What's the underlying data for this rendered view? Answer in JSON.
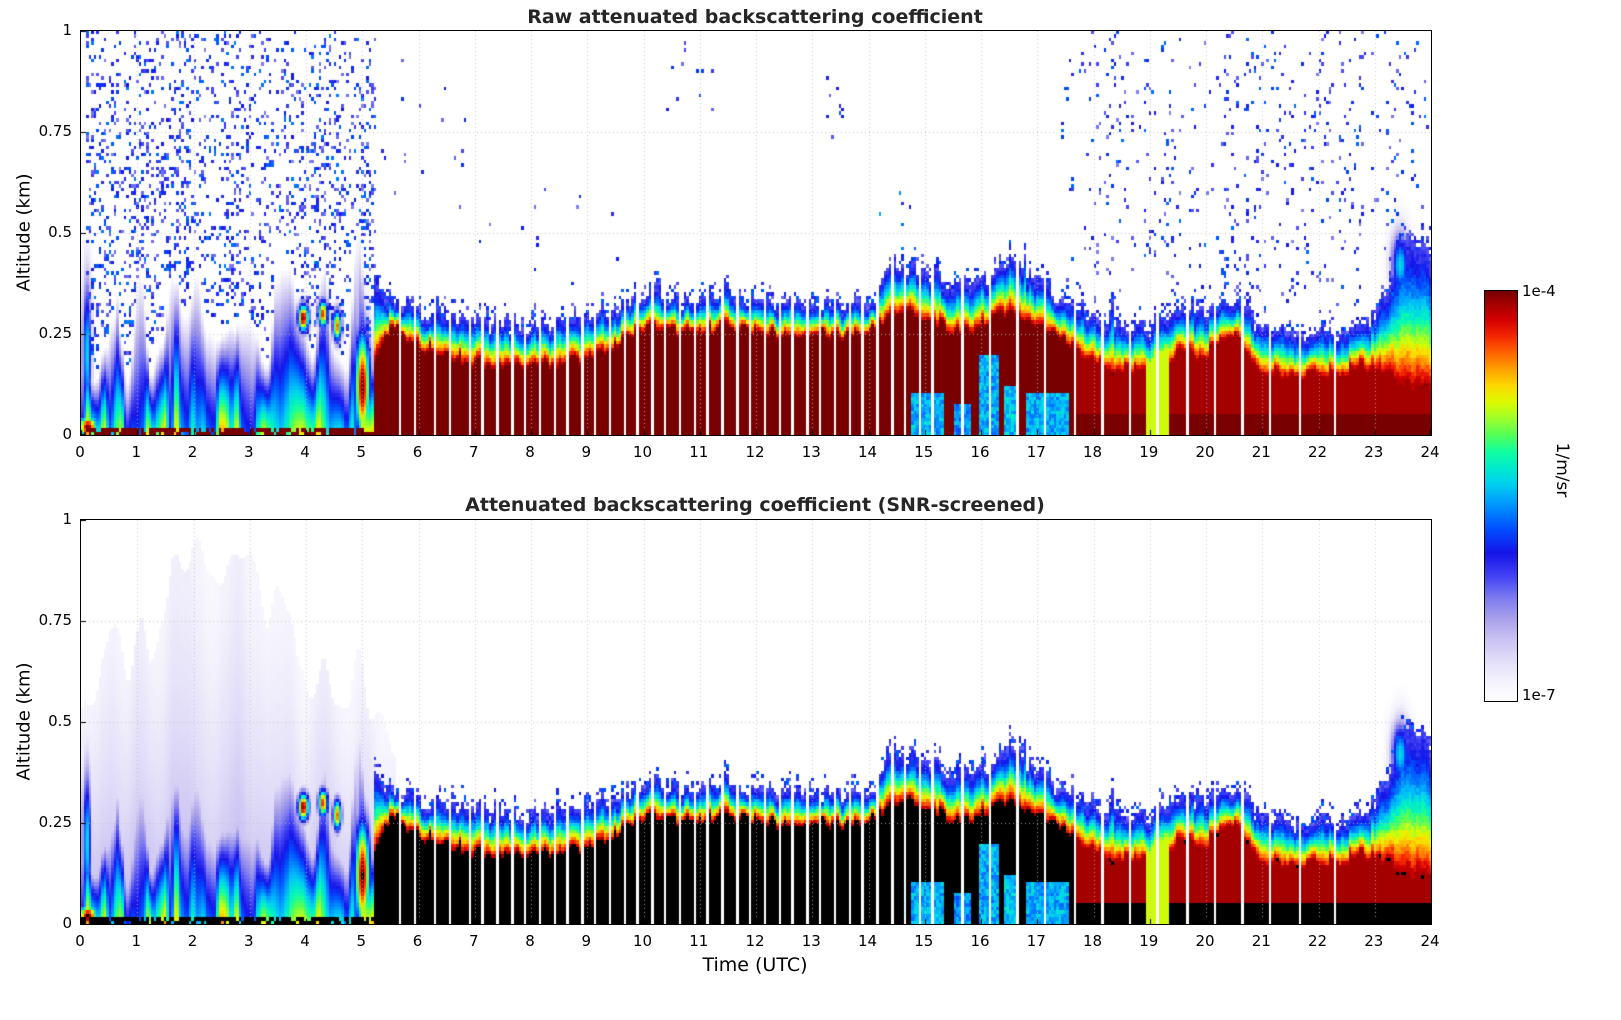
{
  "figure": {
    "plots": [
      {
        "title": "Raw attenuated backscattering coefficient"
      },
      {
        "title": "Attenuated backscattering coefficient (SNR-screened)"
      }
    ],
    "xlabel": "Time (UTC)",
    "ylabel": "Altitude (km)",
    "x_ticks": [
      "0",
      "1",
      "2",
      "3",
      "4",
      "5",
      "6",
      "7",
      "8",
      "9",
      "10",
      "11",
      "12",
      "13",
      "14",
      "15",
      "16",
      "17",
      "18",
      "19",
      "20",
      "21",
      "22",
      "23",
      "24"
    ],
    "y_ticks": [
      "0",
      "0.25",
      "0.5",
      "0.75",
      "1"
    ],
    "colorbar": {
      "max_label": "1e-4",
      "min_label": "1e-7",
      "unit": "1/m/sr"
    }
  },
  "chart_data": [
    {
      "type": "heatmap",
      "title": "Raw attenuated backscattering coefficient",
      "xlabel": "Time (UTC)",
      "ylabel": "Altitude (km)",
      "x_range_hours": [
        0,
        24
      ],
      "y_range_km": [
        0,
        1
      ],
      "value_scale": "log10",
      "value_range": [
        1e-07,
        0.0001
      ],
      "value_units": "1/m/sr",
      "colormap_hint": "jet-like, white at minimum, dark red at maximum",
      "time_grid_hours": [
        0,
        0.5,
        1,
        1.5,
        2,
        2.5,
        3,
        3.5,
        4,
        4.5,
        5,
        5.5,
        6,
        6.5,
        7,
        7.5,
        8,
        8.5,
        9,
        9.5,
        10,
        10.5,
        11,
        11.5,
        12,
        12.5,
        13,
        13.5,
        14,
        14.5,
        15,
        15.5,
        16,
        16.5,
        17,
        17.5,
        18,
        18.5,
        19,
        19.5,
        20,
        20.5,
        21,
        21.5,
        22,
        22.5,
        23,
        23.5,
        24
      ],
      "aerosol_layer_top_km": [
        0.4,
        0.31,
        0.28,
        0.3,
        0.26,
        0.22,
        0.26,
        0.3,
        0.34,
        0.34,
        0.36,
        0.34,
        0.3,
        0.29,
        0.28,
        0.27,
        0.27,
        0.28,
        0.29,
        0.31,
        0.35,
        0.34,
        0.33,
        0.36,
        0.33,
        0.32,
        0.33,
        0.32,
        0.32,
        0.43,
        0.41,
        0.37,
        0.37,
        0.44,
        0.37,
        0.32,
        0.29,
        0.27,
        0.26,
        0.31,
        0.3,
        0.34,
        0.26,
        0.25,
        0.25,
        0.26,
        0.28,
        0.48,
        0.45
      ],
      "saturated_core_top_km": [
        0.04,
        0.02,
        0.02,
        0.02,
        0.02,
        0.01,
        0.02,
        0.02,
        0.03,
        0.03,
        0.1,
        0.27,
        0.22,
        0.2,
        0.18,
        0.17,
        0.17,
        0.18,
        0.19,
        0.22,
        0.27,
        0.26,
        0.25,
        0.27,
        0.26,
        0.25,
        0.26,
        0.25,
        0.26,
        0.31,
        0.29,
        0.26,
        0.27,
        0.31,
        0.28,
        0.24,
        0.18,
        0.16,
        0.15,
        0.2,
        0.2,
        0.25,
        0.16,
        0.15,
        0.15,
        0.16,
        0.17,
        0.13,
        0.11
      ],
      "features": "Dense blue noise speckle fills 00-05 UTC up to 1 km; shallow colorful plume streaks below ~0.35 km before 05 UTC; continuous saturated (dark red) layer below ~0.3 km from ~05:15 to 24 UTC with rainbow gradient edge; spikes to ~0.45 km near 14.5, 15.1, 16.5 and 17.3 UTC; sparse blue noise dots above the layer after 17:30 UTC; thin white vertical columns are missing profiles."
    },
    {
      "type": "heatmap",
      "screened": true,
      "title": "Attenuated backscattering coefficient (SNR-screened)",
      "xlabel": "Time (UTC)",
      "ylabel": "Altitude (km)",
      "x_range_hours": [
        0,
        24
      ],
      "y_range_km": [
        0,
        1
      ],
      "value_scale": "log10",
      "value_range": [
        1e-07,
        0.0001
      ],
      "value_units": "1/m/sr",
      "colormap_hint": "jet-like, white at minimum; saturated returns rendered black",
      "time_grid_hours": [
        0,
        0.5,
        1,
        1.5,
        2,
        2.5,
        3,
        3.5,
        4,
        4.5,
        5,
        5.5,
        6,
        6.5,
        7,
        7.5,
        8,
        8.5,
        9,
        9.5,
        10,
        10.5,
        11,
        11.5,
        12,
        12.5,
        13,
        13.5,
        14,
        14.5,
        15,
        15.5,
        16,
        16.5,
        17,
        17.5,
        18,
        18.5,
        19,
        19.5,
        20,
        20.5,
        21,
        21.5,
        22,
        22.5,
        23,
        23.5,
        24
      ],
      "aerosol_layer_top_km": [
        0.4,
        0.31,
        0.28,
        0.3,
        0.26,
        0.22,
        0.26,
        0.3,
        0.34,
        0.34,
        0.36,
        0.34,
        0.3,
        0.29,
        0.28,
        0.27,
        0.27,
        0.28,
        0.29,
        0.31,
        0.35,
        0.34,
        0.33,
        0.36,
        0.33,
        0.32,
        0.33,
        0.32,
        0.32,
        0.43,
        0.41,
        0.37,
        0.37,
        0.44,
        0.37,
        0.32,
        0.29,
        0.27,
        0.26,
        0.31,
        0.3,
        0.34,
        0.26,
        0.25,
        0.25,
        0.26,
        0.28,
        0.48,
        0.45
      ],
      "saturated_core_top_km": [
        0.04,
        0.02,
        0.02,
        0.02,
        0.02,
        0.01,
        0.02,
        0.02,
        0.03,
        0.03,
        0.1,
        0.27,
        0.22,
        0.2,
        0.18,
        0.17,
        0.17,
        0.18,
        0.19,
        0.22,
        0.27,
        0.26,
        0.25,
        0.27,
        0.26,
        0.25,
        0.26,
        0.25,
        0.26,
        0.31,
        0.29,
        0.26,
        0.27,
        0.31,
        0.28,
        0.24,
        0.18,
        0.16,
        0.15,
        0.2,
        0.2,
        0.25,
        0.16,
        0.15,
        0.15,
        0.16,
        0.17,
        0.13,
        0.11
      ],
      "haze_top_km_00_06": [
        0.55,
        0.75,
        0.65,
        0.8,
        0.85,
        0.82,
        0.9,
        0.75,
        0.62,
        0.6,
        0.6,
        0.5,
        0.3
      ],
      "features": "Same layer structure after SNR screening: the 00-05 UTC noise speckle is removed leaving a pale lavender haze up to ~0.9 km; saturated returns (>= 1e-4 1/m/sr) are shown black between ~05:15 and ~17:40 UTC; cyan weak-signal patches near the surface 14:45-17:30 UTC; missing-profile white columns identical to raw plot."
    }
  ],
  "style": {
    "background": "#ffffff",
    "frame_color": "#000000",
    "grid_color": "rgba(190,190,190,0.8)",
    "saturated_black": "#000000",
    "colormap": [
      [
        0.0,
        "#ffffff"
      ],
      [
        0.05,
        "#f3f1fc"
      ],
      [
        0.1,
        "#e2ddf8"
      ],
      [
        0.15,
        "#c9c2f2"
      ],
      [
        0.2,
        "#a9a0ea"
      ],
      [
        0.25,
        "#7d7cf0"
      ],
      [
        0.3,
        "#4646f5"
      ],
      [
        0.36,
        "#1515e8"
      ],
      [
        0.42,
        "#0050ff"
      ],
      [
        0.48,
        "#0098ff"
      ],
      [
        0.53,
        "#00d0f0"
      ],
      [
        0.57,
        "#00eccc"
      ],
      [
        0.61,
        "#14ff9e"
      ],
      [
        0.65,
        "#55ff55"
      ],
      [
        0.69,
        "#9fff2a"
      ],
      [
        0.73,
        "#ddfa00"
      ],
      [
        0.77,
        "#ffd800"
      ],
      [
        0.81,
        "#ffa000"
      ],
      [
        0.85,
        "#ff6400"
      ],
      [
        0.89,
        "#f52800"
      ],
      [
        0.93,
        "#d50000"
      ],
      [
        0.97,
        "#a50000"
      ],
      [
        1.0,
        "#780000"
      ]
    ]
  },
  "render": {
    "seed": 1234,
    "cols": 540,
    "rows": 116,
    "gaps_hours": [
      5.63,
      5.92,
      6.27,
      6.53,
      6.88,
      7.13,
      7.37,
      7.63,
      7.88,
      8.12,
      8.38,
      8.63,
      8.87,
      9.12,
      9.38,
      9.63,
      9.88,
      10.12,
      10.37,
      10.63,
      10.88,
      11.12,
      11.38,
      11.63,
      11.87,
      12.12,
      12.38,
      12.63,
      12.88,
      13.12,
      13.37,
      13.63,
      13.88,
      14.12,
      14.38,
      14.63,
      14.88,
      15.12,
      15.63,
      16.12,
      16.63,
      17.12,
      17.63,
      18.12,
      18.63,
      19.12,
      19.63,
      20.12,
      20.63,
      21.12,
      21.63,
      22.27
    ],
    "speckle_regions": [
      {
        "t0": 0.1,
        "t1": 5.25,
        "z0": 0.04,
        "z1": 1.0,
        "density": 0.2,
        "vmin": 0.24,
        "vmax": 0.46,
        "falloff": true
      },
      {
        "t0": 5.25,
        "t1": 7.0,
        "z0": 0.3,
        "z1": 1.0,
        "density": 0.006,
        "vmin": 0.24,
        "vmax": 0.4
      },
      {
        "t0": 7.0,
        "t1": 10.0,
        "z0": 0.28,
        "z1": 0.7,
        "density": 0.004,
        "vmin": 0.24,
        "vmax": 0.4
      },
      {
        "t0": 10.3,
        "t1": 11.3,
        "z0": 0.8,
        "z1": 1.0,
        "density": 0.02,
        "vmin": 0.24,
        "vmax": 0.42
      },
      {
        "t0": 13.25,
        "t1": 13.6,
        "z0": 0.72,
        "z1": 0.95,
        "density": 0.06,
        "vmin": 0.26,
        "vmax": 0.44
      },
      {
        "t0": 14.15,
        "t1": 14.75,
        "z0": 0.45,
        "z1": 0.62,
        "density": 0.04,
        "vmin": 0.3,
        "vmax": 0.5
      },
      {
        "t0": 17.4,
        "t1": 24.0,
        "z0": 0.32,
        "z1": 1.0,
        "density": 0.03,
        "vmin": 0.24,
        "vmax": 0.45
      },
      {
        "t0": 18.1,
        "t1": 19.4,
        "z0": 0.45,
        "z1": 1.0,
        "density": 0.035,
        "vmin": 0.24,
        "vmax": 0.45
      },
      {
        "t0": 20.3,
        "t1": 23.7,
        "z0": 0.35,
        "z1": 0.95,
        "density": 0.035,
        "vmin": 0.24,
        "vmax": 0.45
      }
    ],
    "warm_spots": [
      {
        "t": 0.12,
        "z": 0.02,
        "rt": 0.18,
        "rz": 0.03,
        "v": 1.0
      },
      {
        "t": 0.1,
        "z": 0.2,
        "rt": 0.08,
        "rz": 0.18,
        "v": 0.55
      },
      {
        "t": 3.95,
        "z": 0.29,
        "rt": 0.1,
        "rz": 0.035,
        "v": 0.99
      },
      {
        "t": 4.3,
        "z": 0.3,
        "rt": 0.09,
        "rz": 0.035,
        "v": 0.9
      },
      {
        "t": 4.55,
        "z": 0.27,
        "rt": 0.08,
        "rz": 0.04,
        "v": 0.85
      },
      {
        "t": 5.0,
        "z": 0.12,
        "rt": 0.14,
        "rz": 0.14,
        "v": 0.99
      },
      {
        "t": 23.45,
        "z": 0.42,
        "rt": 0.16,
        "rz": 0.08,
        "v": 0.55
      }
    ],
    "ground_cyan": [
      {
        "t0": 14.75,
        "t1": 15.35,
        "z1": 0.1,
        "v": 0.5
      },
      {
        "t0": 15.5,
        "t1": 15.8,
        "z1": 0.08,
        "v": 0.47
      },
      {
        "t0": 15.95,
        "t1": 16.3,
        "z1": 0.2,
        "v": 0.5
      },
      {
        "t0": 16.4,
        "t1": 16.65,
        "z1": 0.12,
        "v": 0.52
      },
      {
        "t0": 16.8,
        "t1": 17.55,
        "z1": 0.1,
        "v": 0.5
      }
    ],
    "cool_columns": [
      {
        "t0": 18.95,
        "t1": 19.35,
        "vmax": 0.72
      }
    ]
  }
}
